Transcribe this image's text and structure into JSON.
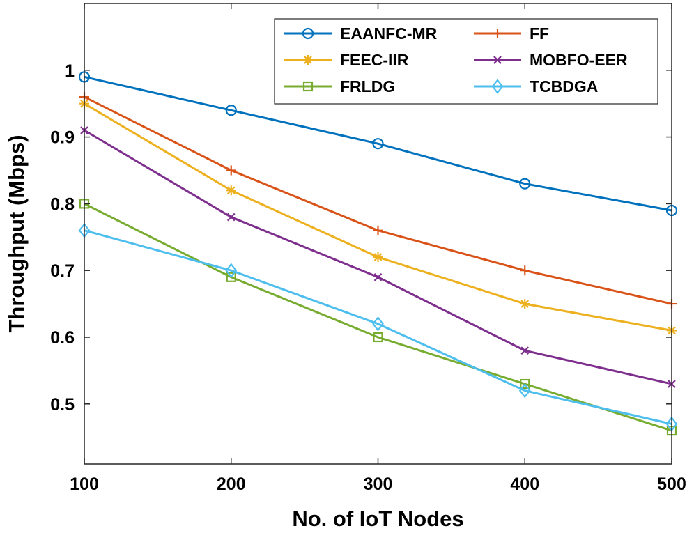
{
  "chart_data": {
    "type": "line",
    "title": "",
    "xlabel": "No. of IoT Nodes",
    "ylabel": "Throughput (Mbps)",
    "x": [
      100,
      200,
      300,
      400,
      500
    ],
    "xlim": [
      100,
      500
    ],
    "ylim": [
      0.41,
      1.1
    ],
    "xticks": [
      "100",
      "200",
      "300",
      "400",
      "500"
    ],
    "yticks": [
      "0.5",
      "0.6",
      "0.7",
      "0.8",
      "0.9",
      "1"
    ],
    "grid": false,
    "legend_position": "top-right",
    "series": [
      {
        "name": "EAANFC-MR",
        "color": "#0072BD",
        "marker": "circle",
        "values": [
          0.99,
          0.94,
          0.89,
          0.83,
          0.79
        ]
      },
      {
        "name": "FF",
        "color": "#D95319",
        "marker": "plus",
        "values": [
          0.96,
          0.85,
          0.76,
          0.7,
          0.65
        ]
      },
      {
        "name": "FEEC-IIR",
        "color": "#EDB120",
        "marker": "asterisk",
        "values": [
          0.95,
          0.82,
          0.72,
          0.65,
          0.61
        ]
      },
      {
        "name": "MOBFO-EER",
        "color": "#7E2F8E",
        "marker": "x",
        "values": [
          0.91,
          0.78,
          0.69,
          0.58,
          0.53
        ]
      },
      {
        "name": "FRLDG",
        "color": "#77AC30",
        "marker": "square",
        "values": [
          0.8,
          0.69,
          0.6,
          0.53,
          0.46
        ]
      },
      {
        "name": "TCBDGA",
        "color": "#4DBEEE",
        "marker": "diamond",
        "values": [
          0.76,
          0.7,
          0.62,
          0.52,
          0.47
        ]
      }
    ]
  }
}
